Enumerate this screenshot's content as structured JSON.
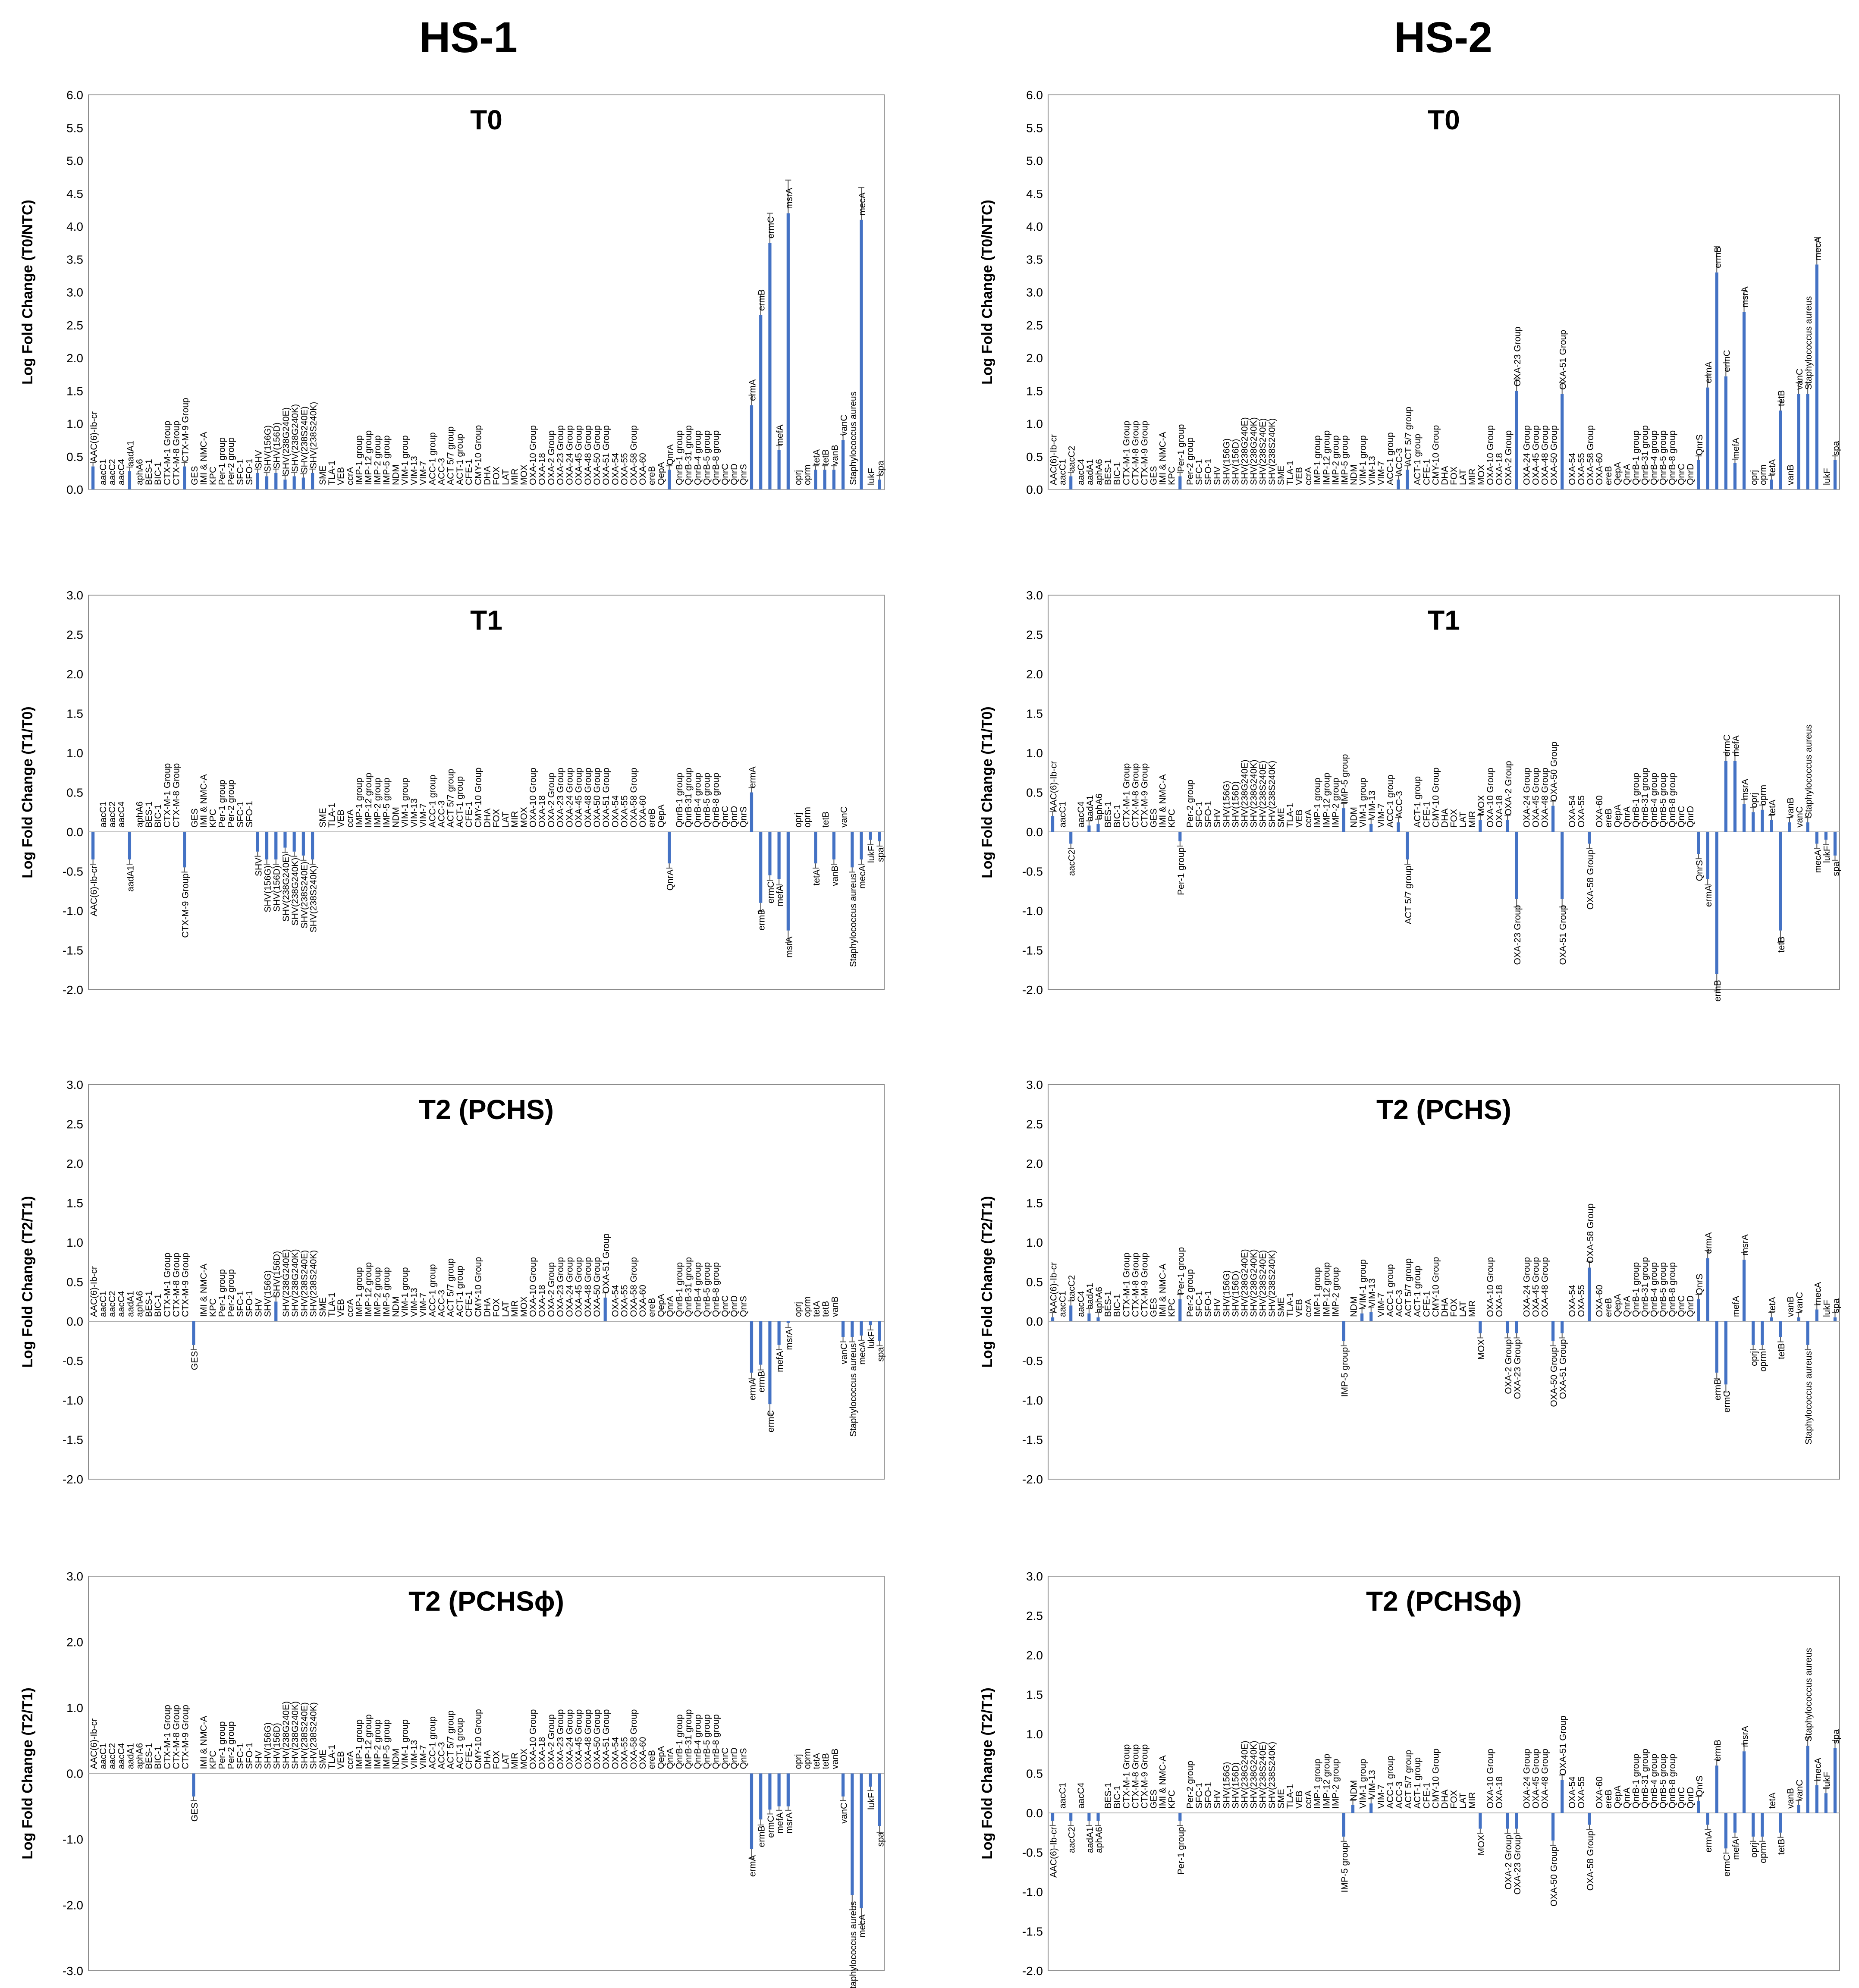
{
  "columns": [
    "HS-1",
    "HS-2"
  ],
  "genes": [
    "AAC(6)-Ib-cr",
    "aacC1",
    "aacC2",
    "aacC4",
    "aadA1",
    "aphA6",
    "BES-1",
    "BIC-1",
    "CTX-M-1 Group",
    "CTX-M-8 Group",
    "CTX-M-9 Group",
    "GES",
    "IMI & NMC-A",
    "KPC",
    "Per-1 group",
    "Per-2 group",
    "SFC-1",
    "SFO-1",
    "SHV",
    "SHV(156G)",
    "SHV(156D)",
    "SHV(238G240E)",
    "SHV(238G240K)",
    "SHV(238S240E)",
    "SHV(238S240K)",
    "SME",
    "TLA-1",
    "VEB",
    "ccrA",
    "IMP-1 group",
    "IMP-12 group",
    "IMP-2 group",
    "IMP-5 group",
    "NDM",
    "VIM-1 group",
    "VIM-13",
    "VIM-7",
    "ACC-1 group",
    "ACC-3",
    "ACT 5/7 group",
    "ACT-1 group",
    "CFE-1",
    "CMY-10 Group",
    "DHA",
    "FOX",
    "LAT",
    "MIR",
    "MOX",
    "OXA-10 Group",
    "OXA-18",
    "OXA-2 Group",
    "OXA-23 Group",
    "OXA-24 Group",
    "OXA-45 Group",
    "OXA-48 Group",
    "OXA-50 Group",
    "OXA-51 Group",
    "OXA-54",
    "OXA-55",
    "OXA-58 Group",
    "OXA-60",
    "ereB",
    "QepA",
    "QnrA",
    "QnrB-1 group",
    "QnrB-31 group",
    "QnrB-4 group",
    "QnrB-5 group",
    "QnrB-8 group",
    "QnrC",
    "QnrD",
    "QnrS",
    "ermA",
    "ermB",
    "ermC",
    "mefA",
    "msrA",
    "oprj",
    "oprm",
    "tetA",
    "tetB",
    "vanB",
    "vanC",
    "Staphylococcus aureus",
    "mecA",
    "lukF",
    "spa"
  ],
  "chart_data": [
    {
      "type": "bar",
      "column": "HS-1",
      "title": "T0",
      "ylabel": "Log Fold Change (T0/NTC)",
      "ylim": [
        0,
        6
      ],
      "yticks": [
        0.0,
        0.5,
        1.0,
        1.5,
        2.0,
        2.5,
        3.0,
        3.5,
        4.0,
        4.5,
        5.0,
        5.5,
        6.0
      ],
      "decimals": 1,
      "values": {
        "AAC(6)-Ib-cr": 0.35,
        "aadA1": 0.28,
        "CTX-M-9 Group": 0.35,
        "SHV": 0.25,
        "SHV(156G)": 0.2,
        "SHV(156D)": 0.25,
        "SHV(238G240E)": 0.15,
        "SHV(238G240K)": 0.2,
        "SHV(238S240E)": 0.18,
        "SHV(238S240K)": 0.25,
        "QnrA": 0.3,
        "ermA": 1.28,
        "ermB": 2.65,
        "ermC": 3.75,
        "mefA": 0.6,
        "msrA": 4.2,
        "tetA": 0.3,
        "tetB": 0.3,
        "vanB": 0.3,
        "vanC": 0.75,
        "mecA": 4.1,
        "spa": 0.15
      }
    },
    {
      "type": "bar",
      "column": "HS-2",
      "title": "T0",
      "ylabel": "Log Fold Change (T0/NTC)",
      "ylim": [
        0,
        6
      ],
      "yticks": [
        0.0,
        0.5,
        1.0,
        1.5,
        2.0,
        2.5,
        3.0,
        3.5,
        4.0,
        4.5,
        5.0,
        5.5,
        6.0
      ],
      "decimals": 1,
      "values": {
        "aacC2": 0.2,
        "Per-1 group": 0.2,
        "ACC-3": 0.15,
        "ACT 5/7 group": 0.3,
        "OXA-23 Group": 1.5,
        "OXA-51 Group": 1.45,
        "QnrS": 0.45,
        "ermA": 1.55,
        "ermB": 3.3,
        "ermC": 1.72,
        "mefA": 0.4,
        "msrA": 2.7,
        "tetA": 0.15,
        "tetB": 1.2,
        "vanC": 1.45,
        "Staphylococcus aureus": 1.45,
        "mecA": 3.42,
        "spa": 0.45
      }
    },
    {
      "type": "bar",
      "column": "HS-1",
      "title": "T1",
      "ylabel": "Log Fold Change (T1/T0)",
      "ylim": [
        -2,
        3
      ],
      "yticks": [
        -2.0,
        -1.5,
        -1.0,
        -0.5,
        0.0,
        0.5,
        1.0,
        1.5,
        2.0,
        2.5,
        3.0
      ],
      "decimals": 1,
      "values": {
        "AAC(6)-Ib-cr": -0.35,
        "aadA1": -0.35,
        "CTX-M-9 Group": -0.45,
        "SHV": -0.25,
        "SHV(156G)": -0.35,
        "SHV(156D)": -0.35,
        "SHV(238G240E)": -0.2,
        "SHV(238G240K)": -0.25,
        "SHV(238S240E)": -0.3,
        "SHV(238S240K)": -0.35,
        "QnrA": -0.4,
        "ermA": 0.5,
        "ermB": -0.9,
        "ermC": -0.55,
        "mefA": -0.6,
        "msrA": -1.25,
        "tetA": -0.4,
        "vanB": -0.35,
        "Staphylococcus aureus": -0.45,
        "mecA": -0.35,
        "lukF": -0.1,
        "spa": -0.12
      }
    },
    {
      "type": "bar",
      "column": "HS-2",
      "title": "T1",
      "ylabel": "Log Fold Change (T1/T0)",
      "ylim": [
        -2,
        3
      ],
      "yticks": [
        -2.0,
        -1.5,
        -1.0,
        -0.5,
        0.0,
        0.5,
        1.0,
        1.5,
        2.0,
        2.5,
        3.0
      ],
      "decimals": 1,
      "values": {
        "AAC(6)-Ib-cr": 0.2,
        "aacC2": -0.15,
        "aadA1": 0.08,
        "aphA6": 0.1,
        "Per-1 group": -0.12,
        "IMP-5 group": 0.3,
        "VIM-13": 0.1,
        "ACC-3": 0.12,
        "ACT 5/7 group": -0.35,
        "MOX": 0.15,
        "OXA-2 Group": 0.15,
        "OXA-23 Group": -0.85,
        "OXA-50 Group": 0.33,
        "OXA-51 Group": -0.85,
        "OXA-58 Group": -0.15,
        "QnrS": -0.28,
        "ermA": -0.6,
        "ermB": -1.8,
        "ermC": 0.9,
        "mefA": 0.9,
        "msrA": 0.35,
        "oprj": 0.25,
        "oprm": 0.28,
        "tetA": 0.15,
        "tetB": -1.25,
        "vanB": 0.12,
        "Staphylococcus aureus": 0.12,
        "mecA": -0.15,
        "lukF": -0.1,
        "spa": -0.3
      }
    },
    {
      "type": "bar",
      "column": "HS-1",
      "title": "T2 (PCHS)",
      "ylabel": "Log Fold Change (T2/T1)",
      "ylim": [
        -2,
        3
      ],
      "yticks": [
        -2.0,
        -1.5,
        -1.0,
        -0.5,
        0.0,
        0.5,
        1.0,
        1.5,
        2.0,
        2.5,
        3.0
      ],
      "decimals": 1,
      "values": {
        "GES": -0.3,
        "SHV(156D)": 0.25,
        "OXA-51 Group": 0.3,
        "ermA": -0.65,
        "ermB": -0.55,
        "ermC": -1.05,
        "mefA": -0.3,
        "msrA": -0.02,
        "vanC": -0.2,
        "Staphylococcus aureus": -0.2,
        "mecA": -0.18,
        "lukF": -0.05,
        "spa": -0.25
      }
    },
    {
      "type": "bar",
      "column": "HS-2",
      "title": "T2 (PCHS)",
      "ylabel": "Log Fold Change (T2/T1)",
      "ylim": [
        -2,
        3
      ],
      "yticks": [
        -2.0,
        -1.5,
        -1.0,
        -0.5,
        0.0,
        0.5,
        1.0,
        1.5,
        2.0,
        2.5,
        3.0
      ],
      "decimals": 1,
      "values": {
        "AAC(6)-Ib-cr": 0.05,
        "aacC2": 0.2,
        "aadA1": 0.1,
        "aphA6": 0.05,
        "Per-1 group": 0.28,
        "IMP-5 group": -0.25,
        "VIM-1 group": 0.1,
        "VIM-13": 0.12,
        "MOX": -0.15,
        "OXA-2 Group": -0.15,
        "OXA-23 Group": -0.15,
        "OXA-50 Group": -0.25,
        "OXA-51 Group": -0.15,
        "OXA-58 Group": 0.68,
        "QnrS": 0.28,
        "ermA": 0.8,
        "ermB": -0.65,
        "ermC": -0.8,
        "msrA": 0.78,
        "oprj": -0.3,
        "oprm": -0.3,
        "tetA": 0.05,
        "tetB": -0.2,
        "vanC": 0.05,
        "Staphylococcus aureus": -0.3,
        "mecA": 0.15,
        "spa": 0.05
      }
    },
    {
      "type": "bar",
      "column": "HS-1",
      "title": "T2 (PCHSɸ)",
      "ylabel": "Log Fold Change (T2/T1)",
      "ylim": [
        -3,
        3
      ],
      "yticks": [
        -3.0,
        -2.0,
        -1.0,
        0.0,
        1.0,
        2.0,
        3.0
      ],
      "decimals": 1,
      "values": {
        "GES": -0.35,
        "ermA": -1.15,
        "ermB": -0.7,
        "ermC": -0.55,
        "mefA": -0.5,
        "msrA": -0.5,
        "vanC": -0.35,
        "Staphylococcus aureus": -1.85,
        "mecA": -2.05,
        "lukF": -0.2,
        "spa": -0.8
      }
    },
    {
      "type": "bar",
      "column": "HS-2",
      "title": "T2 (PCHSɸ)",
      "ylabel": "Log Fold Change (T2/T1)",
      "ylim": [
        -2,
        3
      ],
      "yticks": [
        -2.0,
        -1.5,
        -1.0,
        -0.5,
        0.0,
        0.5,
        1.0,
        1.5,
        2.0,
        2.5,
        3.0
      ],
      "decimals": 1,
      "values": {
        "AAC(6)-Ib-cr": -0.1,
        "aacC2": -0.1,
        "aadA1": -0.1,
        "aphA6": -0.1,
        "Per-1 group": -0.1,
        "IMP-5 group": -0.3,
        "NDM": 0.1,
        "VIM-13": 0.12,
        "MOX": -0.2,
        "OXA-2 Group": -0.2,
        "OXA-23 Group": -0.2,
        "OXA-50 Group": -0.35,
        "OXA-51 Group": 0.42,
        "OXA-58 Group": -0.15,
        "QnrS": 0.15,
        "ermA": -0.15,
        "ermB": 0.6,
        "ermC": -0.45,
        "mefA": -0.25,
        "msrA": 0.78,
        "oprj": -0.3,
        "oprm": -0.3,
        "tetB": -0.25,
        "vanC": 0.1,
        "Staphylococcus aureus": 0.85,
        "mecA": 0.35,
        "lukF": 0.25,
        "spa": 0.82
      }
    }
  ]
}
